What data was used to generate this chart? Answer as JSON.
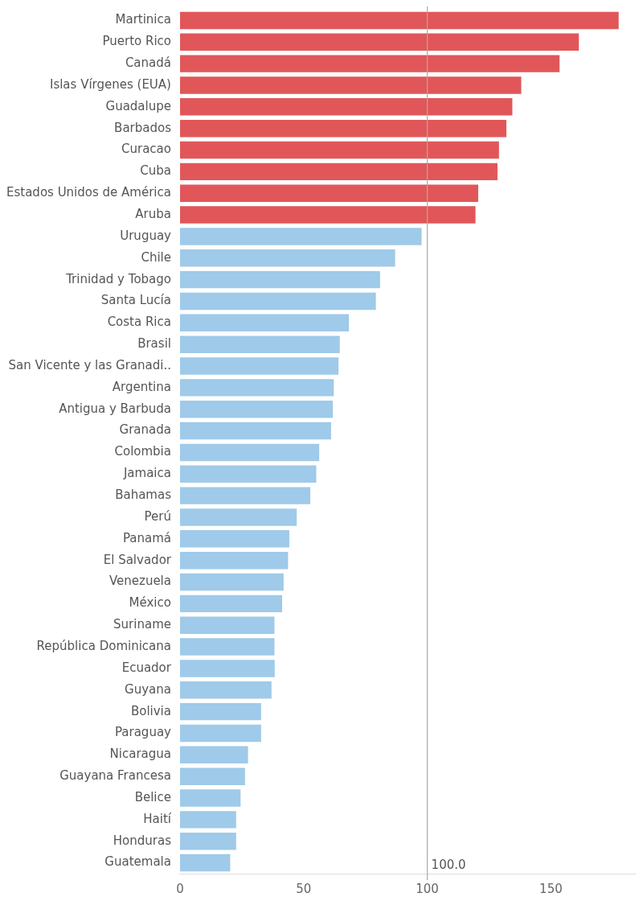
{
  "chart_data": {
    "type": "bar",
    "orientation": "horizontal",
    "categories": [
      "Martinica",
      "Puerto Rico",
      "Canadá",
      "Islas Vírgenes (EUA)",
      "Guadalupe",
      "Barbados",
      "Curacao",
      "Cuba",
      "Estados Unidos de América",
      "Aruba",
      "Uruguay",
      "Chile",
      "Trinidad y Tobago",
      "Santa Lucía",
      "Costa Rica",
      "Brasil",
      "San Vicente y las Granadi..",
      "Argentina",
      "Antigua y Barbuda",
      "Granada",
      "Colombia",
      "Jamaica",
      "Bahamas",
      "Perú",
      "Panamá",
      "El Salvador",
      "Venezuela",
      "México",
      "Suriname",
      "República Dominicana",
      "Ecuador",
      "Guyana",
      "Bolivia",
      "Paraguay",
      "Nicaragua",
      "Guayana Francesa",
      "Belice",
      "Haití",
      "Honduras",
      "Guatemala"
    ],
    "values": [
      177.4,
      161.3,
      153.5,
      138,
      134.4,
      132,
      129,
      128.4,
      120.6,
      119.5,
      97.7,
      87,
      80.9,
      79.2,
      68.3,
      64.6,
      64.1,
      62.2,
      61.8,
      61.1,
      56.3,
      55.1,
      52.7,
      47.2,
      44.2,
      43.7,
      41.9,
      41.3,
      38.2,
      38.2,
      38.3,
      37,
      32.8,
      32.8,
      27.5,
      26.3,
      24.5,
      22.7,
      22.7,
      20.3
    ],
    "colors": [
      "#e15759",
      "#e15759",
      "#e15759",
      "#e15759",
      "#e15759",
      "#e15759",
      "#e15759",
      "#e15759",
      "#e15759",
      "#e15759",
      "#9fcae9",
      "#9fcae9",
      "#9fcae9",
      "#9fcae9",
      "#9fcae9",
      "#9fcae9",
      "#9fcae9",
      "#9fcae9",
      "#9fcae9",
      "#9fcae9",
      "#9fcae9",
      "#9fcae9",
      "#9fcae9",
      "#9fcae9",
      "#9fcae9",
      "#9fcae9",
      "#9fcae9",
      "#9fcae9",
      "#9fcae9",
      "#9fcae9",
      "#9fcae9",
      "#9fcae9",
      "#9fcae9",
      "#9fcae9",
      "#9fcae9",
      "#9fcae9",
      "#9fcae9",
      "#9fcae9",
      "#9fcae9",
      "#9fcae9"
    ],
    "xlim": [
      0,
      184
    ],
    "xticks": [
      0,
      50,
      100,
      150
    ],
    "ref_lines": [
      {
        "axis": "x",
        "value": 100,
        "label": "100.0",
        "color": "#aaaaaa"
      }
    ],
    "grid": false,
    "legend": false
  }
}
